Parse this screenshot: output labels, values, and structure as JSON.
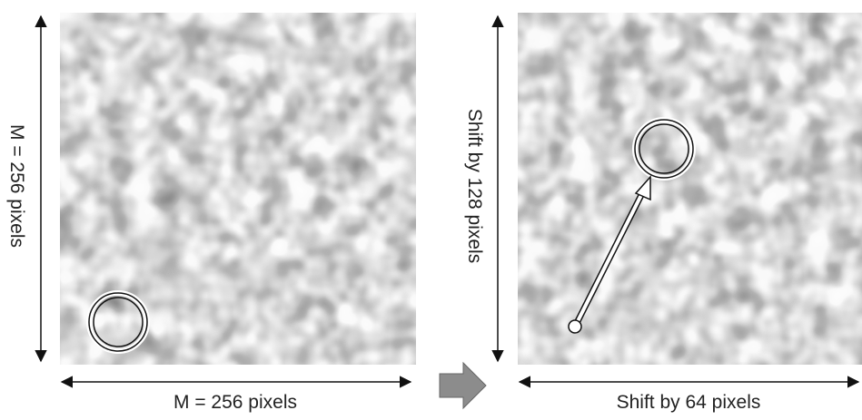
{
  "panels": [
    {
      "left_label": "M = 256 pixels",
      "bottom_label": "M = 256 pixels"
    },
    {
      "left_label": "Shift by 128 pixels",
      "bottom_label": "Shift by 64 pixels"
    }
  ]
}
